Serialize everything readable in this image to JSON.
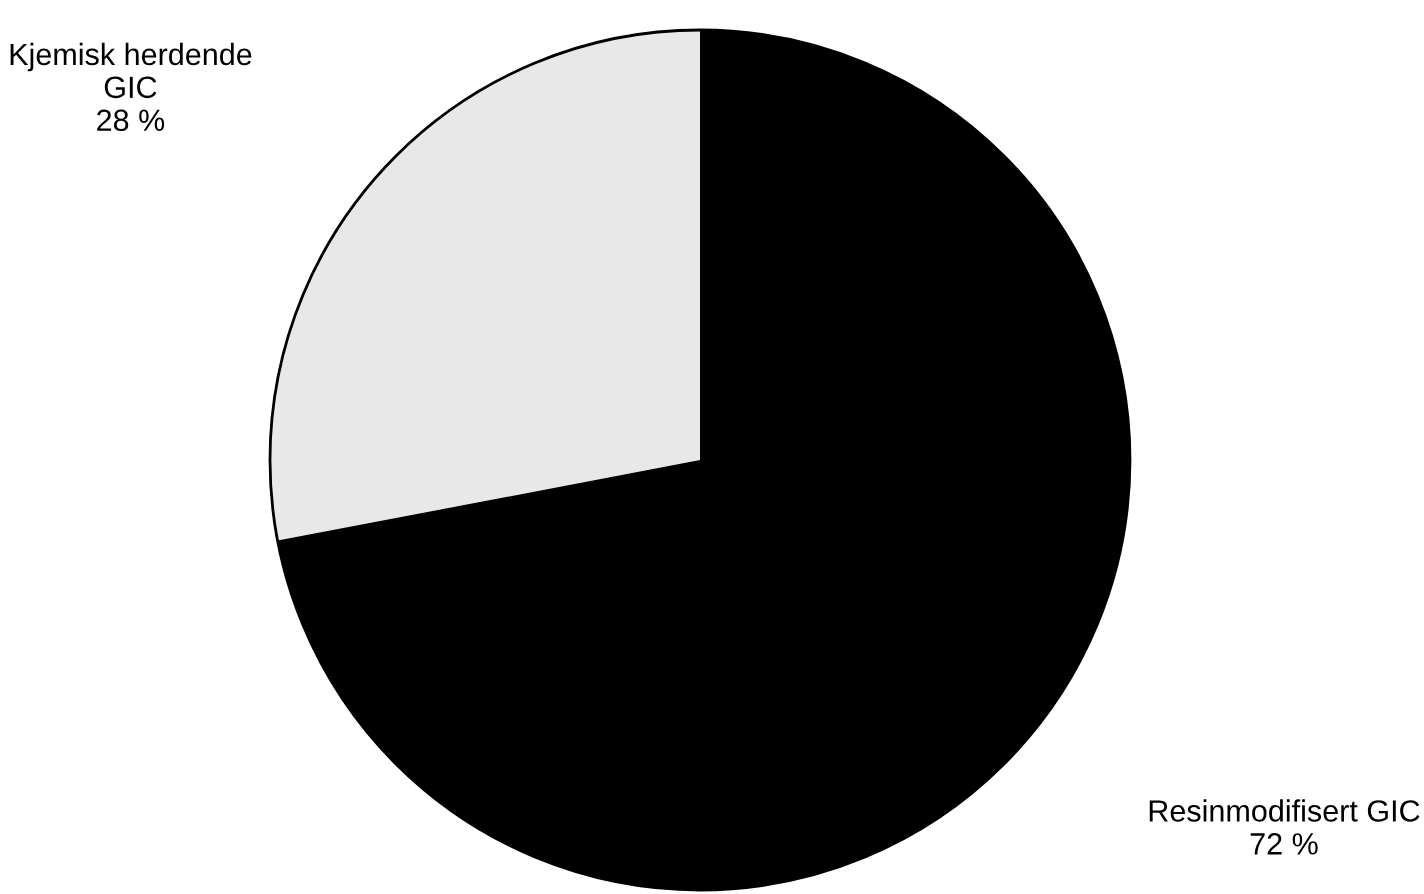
{
  "chart_data": {
    "type": "pie",
    "categories": [
      "Kjemisk herdende\nGIC",
      "Resinmodifisert GIC"
    ],
    "values": [
      28,
      72
    ],
    "value_labels": [
      "28 %",
      "72 %"
    ],
    "colors": [
      "#e8e8e8",
      "#000000"
    ],
    "legend": false
  }
}
